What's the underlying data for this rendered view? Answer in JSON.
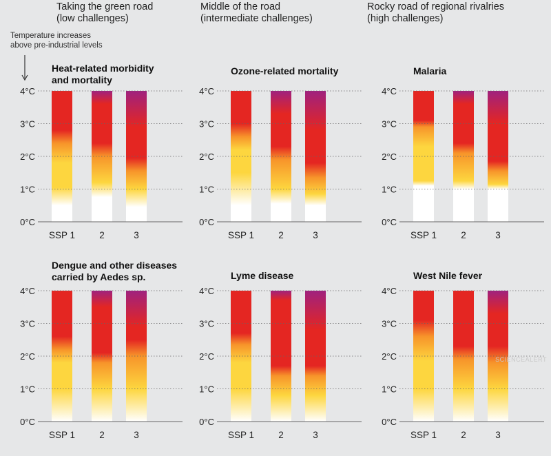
{
  "scenarios": [
    {
      "title": "Taking the green road",
      "sub": "(low challenges)"
    },
    {
      "title": "Middle of the road",
      "sub": "(intermediate challenges)"
    },
    {
      "title": "Rocky road of regional rivalries",
      "sub": "(high challenges)"
    }
  ],
  "note": {
    "line1": "Temperature increases",
    "line2": "above pre-industrial levels"
  },
  "watermark": "SCIENCEALERT",
  "colors": {
    "white": "#ffffff",
    "yellow": "#fdd63f",
    "orange": "#f7942a",
    "red": "#e42622",
    "purple": "#a0217e",
    "background": "#e6e7e8"
  },
  "chart_data": [
    {
      "type": "bar",
      "title_lines": [
        "Heat-related morbidity",
        "and mortality"
      ],
      "categories": [
        "SSP 1",
        "2",
        "3"
      ],
      "yticks": [
        "0°C",
        "1°C",
        "2°C",
        "3°C",
        "4°C"
      ],
      "ylim": [
        0,
        4
      ],
      "bars": [
        [
          {
            "color": "white",
            "v": 0.5
          },
          {
            "color": "yellow",
            "v": 1.05
          },
          {
            "color": "yellow",
            "v": 1.8
          },
          {
            "color": "orange",
            "v": 2.4
          },
          {
            "color": "red",
            "v": 2.8
          },
          {
            "color": "red",
            "v": 4.0
          }
        ],
        [
          {
            "color": "white",
            "v": 0.75
          },
          {
            "color": "yellow",
            "v": 1.2
          },
          {
            "color": "orange",
            "v": 2.0
          },
          {
            "color": "red",
            "v": 2.4
          },
          {
            "color": "red",
            "v": 3.6
          },
          {
            "color": "purple",
            "v": 4.0
          }
        ],
        [
          {
            "color": "white",
            "v": 0.45
          },
          {
            "color": "yellow",
            "v": 1.0
          },
          {
            "color": "orange",
            "v": 1.55
          },
          {
            "color": "red",
            "v": 1.95
          },
          {
            "color": "red",
            "v": 2.9
          },
          {
            "color": "purple",
            "v": 4.0
          }
        ]
      ]
    },
    {
      "type": "bar",
      "title_lines": [
        "Ozone-related mortality"
      ],
      "categories": [
        "SSP 1",
        "2",
        "3"
      ],
      "yticks": [
        "0°C",
        "1°C",
        "2°C",
        "3°C",
        "4°C"
      ],
      "ylim": [
        0,
        4
      ],
      "bars": [
        [
          {
            "color": "white",
            "v": 0.5
          },
          {
            "color": "yellow",
            "v": 1.5
          },
          {
            "color": "yellow",
            "v": 2.2
          },
          {
            "color": "orange",
            "v": 2.6
          },
          {
            "color": "red",
            "v": 3.0
          },
          {
            "color": "red",
            "v": 4.0
          }
        ],
        [
          {
            "color": "white",
            "v": 0.55
          },
          {
            "color": "yellow",
            "v": 1.0
          },
          {
            "color": "orange",
            "v": 1.9
          },
          {
            "color": "red",
            "v": 2.3
          },
          {
            "color": "red",
            "v": 3.3
          },
          {
            "color": "purple",
            "v": 4.0
          }
        ],
        [
          {
            "color": "white",
            "v": 0.5
          },
          {
            "color": "yellow",
            "v": 0.85
          },
          {
            "color": "orange",
            "v": 1.35
          },
          {
            "color": "red",
            "v": 1.8
          },
          {
            "color": "red",
            "v": 2.8
          },
          {
            "color": "purple",
            "v": 4.0
          }
        ]
      ]
    },
    {
      "type": "bar",
      "title_lines": [
        "Malaria"
      ],
      "categories": [
        "SSP 1",
        "2",
        "3"
      ],
      "yticks": [
        "0°C",
        "1°C",
        "2°C",
        "3°C",
        "4°C"
      ],
      "ylim": [
        0,
        4
      ],
      "bars": [
        [
          {
            "color": "white",
            "v": 1.1
          },
          {
            "color": "yellow",
            "v": 1.25
          },
          {
            "color": "yellow",
            "v": 2.3
          },
          {
            "color": "orange",
            "v": 2.9
          },
          {
            "color": "red",
            "v": 3.1
          },
          {
            "color": "red",
            "v": 4.0
          }
        ],
        [
          {
            "color": "white",
            "v": 1.0
          },
          {
            "color": "yellow",
            "v": 1.25
          },
          {
            "color": "orange",
            "v": 2.1
          },
          {
            "color": "red",
            "v": 2.4
          },
          {
            "color": "red",
            "v": 3.6
          },
          {
            "color": "purple",
            "v": 4.0
          }
        ],
        [
          {
            "color": "white",
            "v": 1.0
          },
          {
            "color": "yellow",
            "v": 1.15
          },
          {
            "color": "orange",
            "v": 1.55
          },
          {
            "color": "red",
            "v": 1.85
          },
          {
            "color": "red",
            "v": 3.0
          },
          {
            "color": "purple",
            "v": 4.0
          }
        ]
      ]
    },
    {
      "type": "bar",
      "title_lines": [
        "Dengue and other diseases",
        "carried by Aedes sp."
      ],
      "categories": [
        "SSP 1",
        "2",
        "3"
      ],
      "yticks": [
        "0°C",
        "1°C",
        "2°C",
        "3°C",
        "4°C"
      ],
      "ylim": [
        0,
        4
      ],
      "bars": [
        [
          {
            "color": "white",
            "v": 0
          },
          {
            "color": "yellow",
            "v": 1.0
          },
          {
            "color": "yellow",
            "v": 1.8
          },
          {
            "color": "orange",
            "v": 2.2
          },
          {
            "color": "red",
            "v": 2.6
          },
          {
            "color": "red",
            "v": 4.0
          }
        ],
        [
          {
            "color": "white",
            "v": 0
          },
          {
            "color": "yellow",
            "v": 1.0
          },
          {
            "color": "orange",
            "v": 1.8
          },
          {
            "color": "red",
            "v": 2.1
          },
          {
            "color": "red",
            "v": 3.5
          },
          {
            "color": "purple",
            "v": 4.0
          }
        ],
        [
          {
            "color": "white",
            "v": 0
          },
          {
            "color": "yellow",
            "v": 1.0
          },
          {
            "color": "orange",
            "v": 2.0
          },
          {
            "color": "red",
            "v": 2.5
          },
          {
            "color": "red",
            "v": 2.9
          },
          {
            "color": "purple",
            "v": 4.0
          }
        ]
      ]
    },
    {
      "type": "bar",
      "title_lines": [
        "Lyme disease"
      ],
      "categories": [
        "SSP 1",
        "2",
        "3"
      ],
      "yticks": [
        "0°C",
        "1°C",
        "2°C",
        "3°C",
        "4°C"
      ],
      "ylim": [
        0,
        4
      ],
      "bars": [
        [
          {
            "color": "white",
            "v": 0
          },
          {
            "color": "yellow",
            "v": 1.0
          },
          {
            "color": "yellow",
            "v": 1.8
          },
          {
            "color": "orange",
            "v": 2.35
          },
          {
            "color": "red",
            "v": 2.7
          },
          {
            "color": "red",
            "v": 4.0
          }
        ],
        [
          {
            "color": "white",
            "v": 0
          },
          {
            "color": "yellow",
            "v": 0.8
          },
          {
            "color": "orange",
            "v": 1.4
          },
          {
            "color": "red",
            "v": 1.7
          },
          {
            "color": "red",
            "v": 3.7
          },
          {
            "color": "purple",
            "v": 4.0
          }
        ],
        [
          {
            "color": "white",
            "v": 0
          },
          {
            "color": "yellow",
            "v": 0.8
          },
          {
            "color": "orange",
            "v": 1.4
          },
          {
            "color": "red",
            "v": 1.7
          },
          {
            "color": "red",
            "v": 2.8
          },
          {
            "color": "purple",
            "v": 4.0
          }
        ]
      ]
    },
    {
      "type": "bar",
      "title_lines": [
        "West Nile fever"
      ],
      "categories": [
        "SSP 1",
        "2",
        "3"
      ],
      "yticks": [
        "0°C",
        "1°C",
        "2°C",
        "3°C",
        "4°C"
      ],
      "ylim": [
        0,
        4
      ],
      "bars": [
        [
          {
            "color": "white",
            "v": 0
          },
          {
            "color": "yellow",
            "v": 1.0
          },
          {
            "color": "yellow",
            "v": 1.85
          },
          {
            "color": "orange",
            "v": 2.6
          },
          {
            "color": "red",
            "v": 3.1
          },
          {
            "color": "red",
            "v": 4.0
          }
        ],
        [
          {
            "color": "white",
            "v": 0
          },
          {
            "color": "yellow",
            "v": 1.0
          },
          {
            "color": "orange",
            "v": 1.9
          },
          {
            "color": "red",
            "v": 2.3
          },
          {
            "color": "red",
            "v": 3.5
          },
          {
            "color": "red",
            "v": 4.0
          }
        ],
        [
          {
            "color": "white",
            "v": 0
          },
          {
            "color": "yellow",
            "v": 1.0
          },
          {
            "color": "orange",
            "v": 1.8
          },
          {
            "color": "red",
            "v": 2.3
          },
          {
            "color": "red",
            "v": 3.3
          },
          {
            "color": "purple",
            "v": 4.0
          }
        ]
      ]
    }
  ]
}
